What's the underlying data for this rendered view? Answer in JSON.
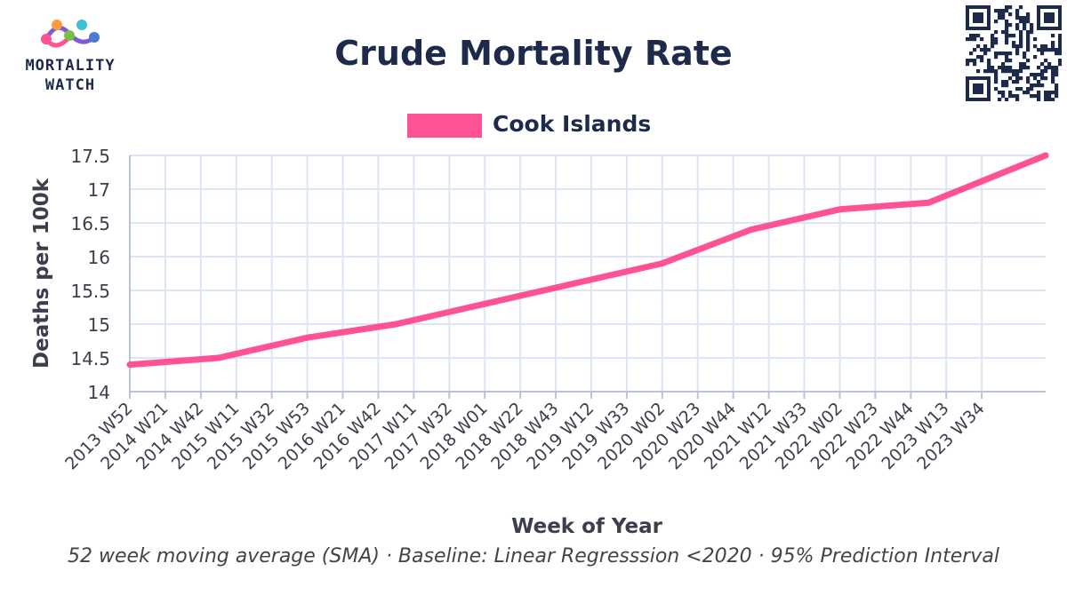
{
  "header": {
    "title": "Crude Mortality Rate",
    "logo_line1": "MORTALITY",
    "logo_line2": "WATCH",
    "qr_icon": "qr-code-icon"
  },
  "colors": {
    "series": "#ff5294",
    "grid": "#dde4f3",
    "text": "#1e2a4a",
    "axis_text": "#3a3f4b"
  },
  "footer": {
    "subtitle": "52 week moving average (SMA) · Baseline: Linear Regresssion <2020 · 95% Prediction Interval"
  },
  "chart_data": {
    "type": "line",
    "title": "Crude Mortality Rate",
    "xlabel": "Week of Year",
    "ylabel": "Deaths per 100k",
    "ylim": [
      14,
      17.5
    ],
    "yticks": [
      14,
      14.5,
      15,
      15.5,
      16,
      16.5,
      17,
      17.5
    ],
    "ytick_labels": [
      "14",
      "14.5",
      "15",
      "15.5",
      "16",
      "16.5",
      "17",
      "17.5"
    ],
    "grid": true,
    "legend_position": "top-center",
    "categories": [
      "2013 W52",
      "2014 W21",
      "2014 W42",
      "2015 W11",
      "2015 W32",
      "2015 W53",
      "2016 W21",
      "2016 W42",
      "2017 W11",
      "2017 W32",
      "2018 W01",
      "2018 W22",
      "2018 W43",
      "2019 W12",
      "2019 W33",
      "2020 W02",
      "2020 W23",
      "2020 W44",
      "2021 W12",
      "2021 W33",
      "2022 W02",
      "2022 W23",
      "2022 W44",
      "2023 W13",
      "2023 W34"
    ],
    "x_range": [
      0,
      25.8
    ],
    "series": [
      {
        "name": "Cook Islands",
        "color": "#ff5294",
        "points": [
          {
            "x": 0,
            "y": 14.4
          },
          {
            "x": 2.5,
            "y": 14.5
          },
          {
            "x": 5,
            "y": 14.8
          },
          {
            "x": 7.5,
            "y": 15.0
          },
          {
            "x": 10,
            "y": 15.3
          },
          {
            "x": 12.5,
            "y": 15.6
          },
          {
            "x": 15,
            "y": 15.9
          },
          {
            "x": 17.5,
            "y": 16.4
          },
          {
            "x": 20,
            "y": 16.7
          },
          {
            "x": 22.5,
            "y": 16.8
          },
          {
            "x": 25.8,
            "y": 17.5
          }
        ]
      }
    ]
  }
}
